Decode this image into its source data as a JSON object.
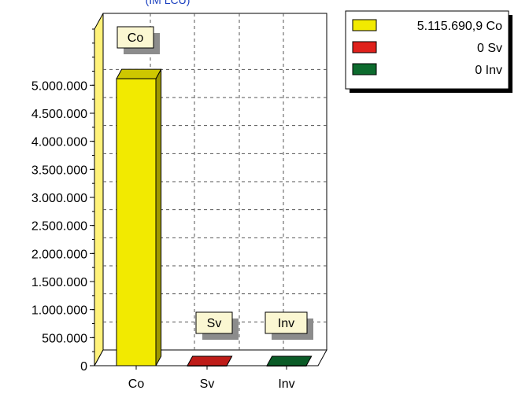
{
  "chart_data": {
    "type": "bar",
    "title": "(IM LCU)",
    "categories": [
      "Co",
      "Sv",
      "Inv"
    ],
    "series": [
      {
        "values": [
          5115690.9,
          0,
          0
        ],
        "colors": [
          "#f2ea00",
          "#e0211c",
          "#0d6b2e"
        ]
      }
    ],
    "ylim": [
      0,
      6000000
    ],
    "y_ticks": [
      0,
      500000,
      1000000,
      1500000,
      2000000,
      2500000,
      3000000,
      3500000,
      4000000,
      4500000,
      5000000
    ],
    "y_tick_labels": [
      "0",
      "500.000",
      "1.000.000",
      "1.500.000",
      "2.000.000",
      "2.500.000",
      "3.000.000",
      "3.500.000",
      "4.000.000",
      "4.500.000",
      "5.000.000"
    ],
    "grid": true,
    "callout_labels": [
      "Co",
      "Sv",
      "Inv"
    ],
    "legend": {
      "placement": "top-right",
      "entries": [
        {
          "label": "5.115.690,9 Co",
          "color": "#f2ea00"
        },
        {
          "label": "0 Sv",
          "color": "#e0211c"
        },
        {
          "label": "0 Inv",
          "color": "#0d6b2e"
        }
      ]
    }
  }
}
